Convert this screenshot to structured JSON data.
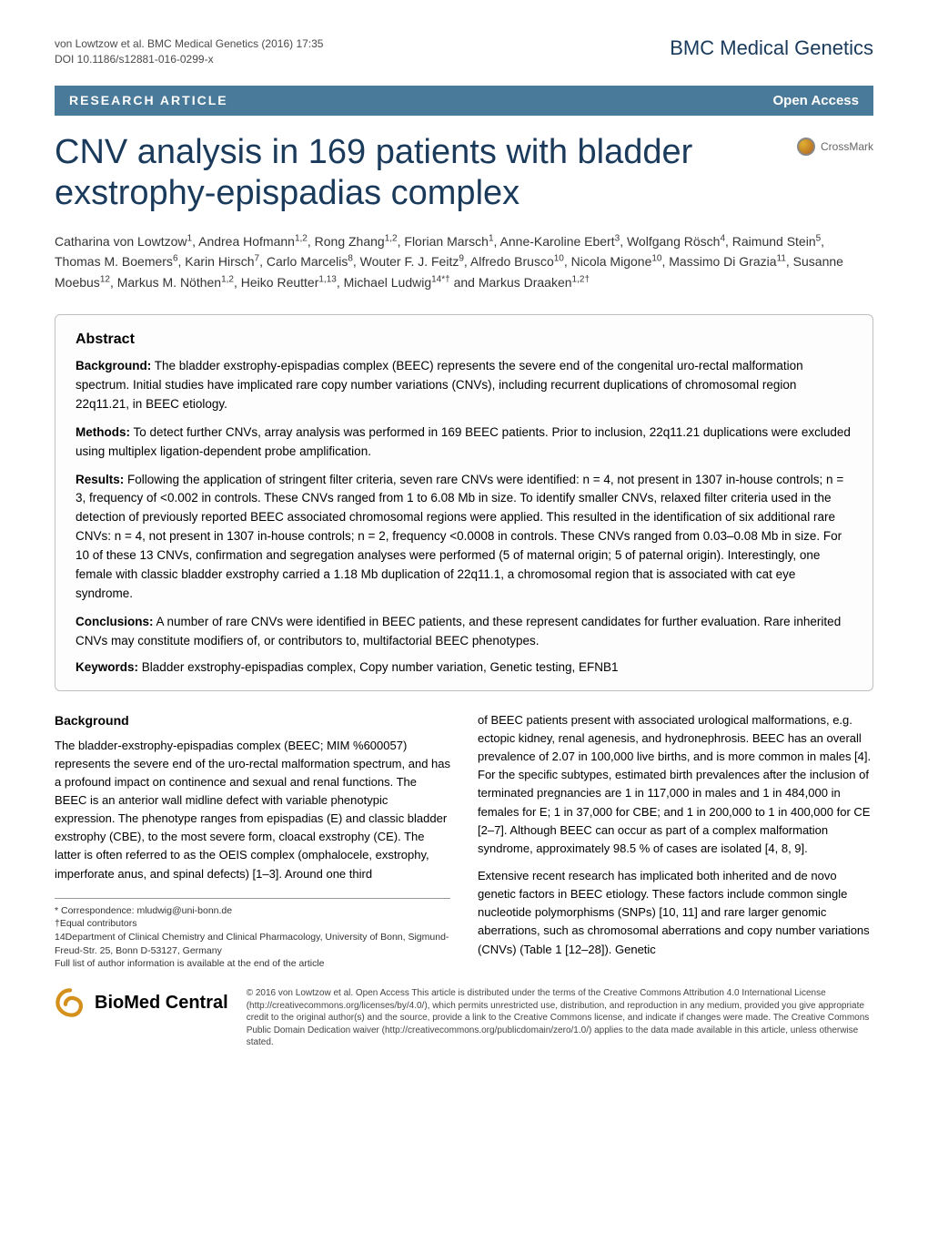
{
  "header": {
    "citation_line1": "von Lowtzow et al. BMC Medical Genetics (2016) 17:35",
    "citation_line2": "DOI 10.1186/s12881-016-0299-x",
    "journal_brand": "BMC Medical Genetics"
  },
  "bar": {
    "article_type": "RESEARCH ARTICLE",
    "open_access": "Open Access"
  },
  "title": "CNV analysis in 169 patients with bladder exstrophy-epispadias complex",
  "crossmark": "CrossMark",
  "authors_html": "Catharina von Lowtzow<sup>1</sup>, Andrea Hofmann<sup>1,2</sup>, Rong Zhang<sup>1,2</sup>, Florian Marsch<sup>1</sup>, Anne-Karoline Ebert<sup>3</sup>, Wolfgang Rösch<sup>4</sup>, Raimund Stein<sup>5</sup>, Thomas M. Boemers<sup>6</sup>, Karin Hirsch<sup>7</sup>, Carlo Marcelis<sup>8</sup>, Wouter F. J. Feitz<sup>9</sup>, Alfredo Brusco<sup>10</sup>, Nicola Migone<sup>10</sup>, Massimo Di Grazia<sup>11</sup>, Susanne Moebus<sup>12</sup>, Markus M. Nöthen<sup>1,2</sup>, Heiko Reutter<sup>1,13</sup>, Michael Ludwig<sup>14*†</sup> and Markus Draaken<sup>1,2†</sup>",
  "abstract": {
    "heading": "Abstract",
    "background_label": "Background:",
    "background": "The bladder exstrophy-epispadias complex (BEEC) represents the severe end of the congenital uro-rectal malformation spectrum. Initial studies have implicated rare copy number variations (CNVs), including recurrent duplications of chromosomal region 22q11.21, in BEEC etiology.",
    "methods_label": "Methods:",
    "methods": "To detect further CNVs, array analysis was performed in 169 BEEC patients. Prior to inclusion, 22q11.21 duplications were excluded using multiplex ligation-dependent probe amplification.",
    "results_label": "Results:",
    "results": "Following the application of stringent filter criteria, seven rare CNVs were identified: n = 4, not present in 1307 in-house controls; n = 3, frequency of <0.002 in controls. These CNVs ranged from 1 to 6.08 Mb in size. To identify smaller CNVs, relaxed filter criteria used in the detection of previously reported BEEC associated chromosomal regions were applied. This resulted in the identification of six additional rare CNVs: n = 4, not present in 1307 in-house controls; n = 2, frequency <0.0008 in controls. These CNVs ranged from 0.03–0.08 Mb in size. For 10 of these 13 CNVs, confirmation and segregation analyses were performed (5 of maternal origin; 5 of paternal origin). Interestingly, one female with classic bladder exstrophy carried a 1.18 Mb duplication of 22q11.1, a chromosomal region that is associated with cat eye syndrome.",
    "conclusions_label": "Conclusions:",
    "conclusions": "A number of rare CNVs were identified in BEEC patients, and these represent candidates for further evaluation. Rare inherited CNVs may constitute modifiers of, or contributors to, multifactorial BEEC phenotypes.",
    "keywords_label": "Keywords:",
    "keywords": "Bladder exstrophy-epispadias complex, Copy number variation, Genetic testing, EFNB1"
  },
  "body": {
    "background_heading": "Background",
    "col1_p1": "The bladder-exstrophy-epispadias complex (BEEC; MIM %600057) represents the severe end of the uro-rectal malformation spectrum, and has a profound impact on continence and sexual and renal functions. The BEEC is an anterior wall midline defect with variable phenotypic expression. The phenotype ranges from epispadias (E) and classic bladder exstrophy (CBE), to the most severe form, cloacal exstrophy (CE). The latter is often referred to as the OEIS complex (omphalocele, exstrophy, imperforate anus, and spinal defects) [1–3]. Around one third",
    "col2_p1": "of BEEC patients present with associated urological malformations, e.g. ectopic kidney, renal agenesis, and hydronephrosis. BEEC has an overall prevalence of 2.07 in 100,000 live births, and is more common in males [4]. For the specific subtypes, estimated birth prevalences after the inclusion of terminated pregnancies are 1 in 117,000 in males and 1 in 484,000 in females for E; 1 in 37,000 for CBE; and 1 in 200,000 to 1 in 400,000 for CE [2–7]. Although BEEC can occur as part of a complex malformation syndrome, approximately 98.5 % of cases are isolated [4, 8, 9].",
    "col2_p2": "Extensive recent research has implicated both inherited and de novo genetic factors in BEEC etiology. These factors include common single nucleotide polymorphisms (SNPs) [10, 11] and rare larger genomic aberrations, such as chromosomal aberrations and copy number variations (CNVs) (Table 1 [12–28]). Genetic"
  },
  "footnotes": {
    "correspondence": "* Correspondence: mludwig@uni-bonn.de",
    "equal": "†Equal contributors",
    "affil": "14Department of Clinical Chemistry and Clinical Pharmacology, University of Bonn, Sigmund-Freud-Str. 25, Bonn D-53127, Germany",
    "full_list": "Full list of author information is available at the end of the article"
  },
  "footer": {
    "bmc_brand_prefix": "BioMed",
    "bmc_brand_suffix": " Central",
    "license": "© 2016 von Lowtzow et al. Open Access This article is distributed under the terms of the Creative Commons Attribution 4.0 International License (http://creativecommons.org/licenses/by/4.0/), which permits unrestricted use, distribution, and reproduction in any medium, provided you give appropriate credit to the original author(s) and the source, provide a link to the Creative Commons license, and indicate if changes were made. The Creative Commons Public Domain Dedication waiver (http://creativecommons.org/publicdomain/zero/1.0/) applies to the data made available in this article, unless otherwise stated."
  },
  "colors": {
    "bar_bg": "#4a7a9a",
    "brand_color": "#1a3a5c",
    "title_color": "#1a3a5c"
  }
}
